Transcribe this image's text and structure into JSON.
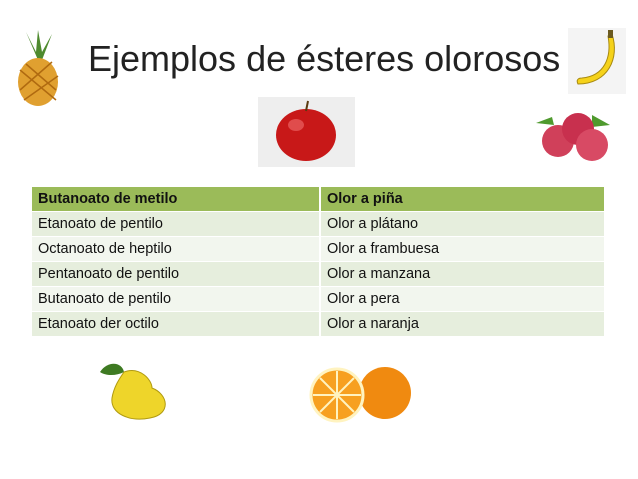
{
  "title": "Ejemplos de ésteres olorosos",
  "table": {
    "header": [
      "Butanoato de metilo",
      "Olor a piña"
    ],
    "rows": [
      [
        "Etanoato de pentilo",
        " Olor a plátano"
      ],
      [
        "Octanoato de heptilo",
        "Olor a frambuesa"
      ],
      [
        "Pentanoato de pentilo",
        "Olor a manzana"
      ],
      [
        "Butanoato de pentilo",
        "Olor a pera"
      ],
      [
        "Etanoato der octilo",
        "Olor a naranja"
      ]
    ]
  },
  "colors": {
    "header": "#9bbb59",
    "row_a": "#e6eedd",
    "row_b": "#f2f6ee"
  },
  "images": [
    "pineapple",
    "banana",
    "apple",
    "raspberry",
    "pear",
    "oranges"
  ]
}
